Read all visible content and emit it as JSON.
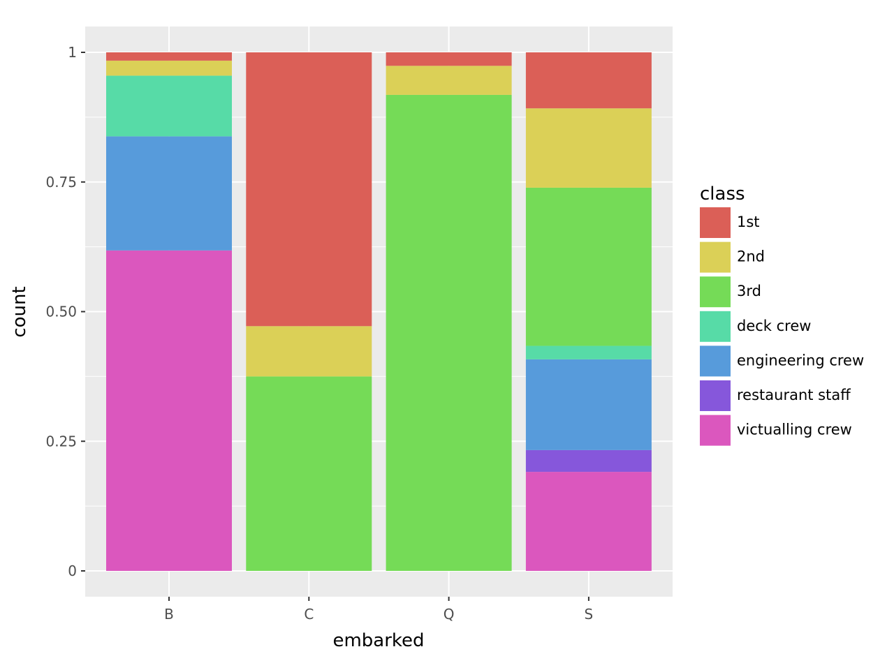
{
  "chart_data": {
    "type": "bar",
    "stacked": true,
    "position": "fill",
    "xlabel": "embarked",
    "ylabel": "count",
    "categories": [
      "B",
      "C",
      "Q",
      "S"
    ],
    "ylim": [
      0,
      1
    ],
    "y_ticks": [
      0,
      0.25,
      0.5,
      0.75,
      1
    ],
    "y_tick_labels": [
      "0",
      "0.25",
      "0.50",
      "0.75",
      "1"
    ],
    "grid": true,
    "legend": {
      "title": "class",
      "placement": "right"
    },
    "series": [
      {
        "name": "1st",
        "color": "#db5f57",
        "values": [
          0.016,
          0.528,
          0.026,
          0.108
        ]
      },
      {
        "name": "2nd",
        "color": "#dbd057",
        "values": [
          0.029,
          0.097,
          0.056,
          0.153
        ]
      },
      {
        "name": "3rd",
        "color": "#75db57",
        "values": [
          0.0,
          0.375,
          0.918,
          0.305
        ]
      },
      {
        "name": "deck crew",
        "color": "#57dba7",
        "values": [
          0.117,
          0.0,
          0.0,
          0.026
        ]
      },
      {
        "name": "engineering crew",
        "color": "#579bdb",
        "values": [
          0.22,
          0.0,
          0.0,
          0.175
        ]
      },
      {
        "name": "restaurant staff",
        "color": "#8657db",
        "values": [
          0.0,
          0.0,
          0.0,
          0.042
        ]
      },
      {
        "name": "victualling crew",
        "color": "#db57be",
        "values": [
          0.618,
          0.0,
          0.0,
          0.191
        ]
      }
    ]
  }
}
